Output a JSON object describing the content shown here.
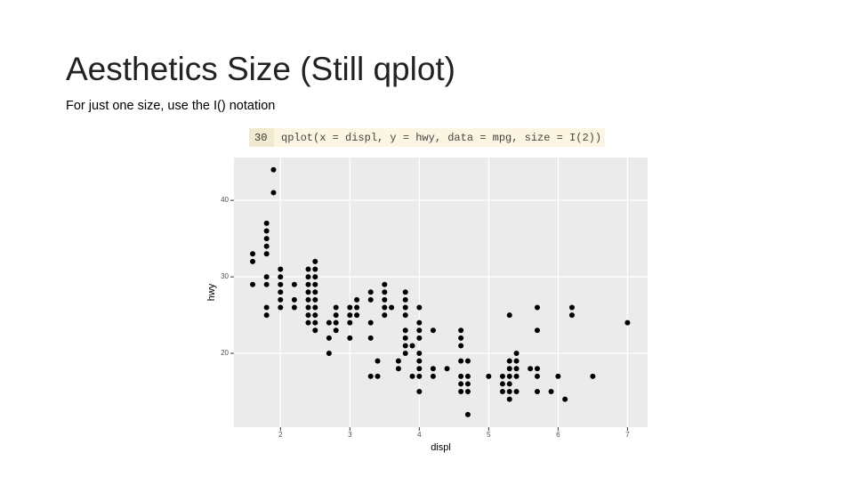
{
  "slide": {
    "title": "Aesthetics Size (Still qplot)",
    "subtitle": "For just one size, use the I() notation",
    "code_line_number": "30",
    "code": "qplot(x = displ, y = hwy, data = mpg, size = I(2))"
  },
  "chart_data": {
    "type": "scatter",
    "xlabel": "displ",
    "ylabel": "hwy",
    "color": "#000000",
    "grid": true,
    "xlim": [
      1.33,
      7.29
    ],
    "ylim": [
      10.35,
      45.6
    ],
    "xticks": [
      2,
      3,
      4,
      5,
      6,
      7
    ],
    "yticks": [
      20,
      30,
      40
    ],
    "x": [
      1.6,
      1.6,
      1.6,
      1.8,
      1.8,
      1.8,
      1.8,
      1.8,
      1.8,
      1.8,
      1.8,
      1.8,
      1.9,
      1.9,
      2.0,
      2.0,
      2.0,
      2.0,
      2.0,
      2.0,
      2.2,
      2.2,
      2.2,
      2.4,
      2.4,
      2.4,
      2.4,
      2.4,
      2.4,
      2.4,
      2.4,
      2.5,
      2.5,
      2.5,
      2.5,
      2.5,
      2.5,
      2.5,
      2.5,
      2.5,
      2.5,
      2.7,
      2.7,
      2.7,
      2.8,
      2.8,
      2.8,
      2.8,
      3.0,
      3.0,
      3.0,
      3.0,
      3.1,
      3.1,
      3.1,
      3.3,
      3.3,
      3.3,
      3.3,
      3.3,
      3.4,
      3.4,
      3.5,
      3.5,
      3.5,
      3.5,
      3.5,
      3.6,
      3.7,
      3.7,
      3.8,
      3.8,
      3.8,
      3.8,
      3.8,
      3.8,
      3.8,
      3.8,
      3.9,
      3.9,
      4.0,
      4.0,
      4.0,
      4.0,
      4.0,
      4.0,
      4.0,
      4.0,
      4.0,
      4.2,
      4.2,
      4.2,
      4.4,
      4.6,
      4.6,
      4.6,
      4.6,
      4.6,
      4.6,
      4.6,
      4.7,
      4.7,
      4.7,
      4.7,
      4.7,
      5.0,
      5.2,
      5.2,
      5.2,
      5.3,
      5.3,
      5.3,
      5.3,
      5.3,
      5.3,
      5.3,
      5.4,
      5.4,
      5.4,
      5.4,
      5.4,
      5.6,
      5.7,
      5.7,
      5.7,
      5.7,
      5.7,
      5.9,
      6.0,
      6.1,
      6.2,
      6.2,
      6.5,
      7.0
    ],
    "values": [
      33,
      32,
      29,
      37,
      36,
      35,
      34,
      33,
      30,
      29,
      26,
      25,
      44,
      41,
      31,
      30,
      29,
      28,
      27,
      26,
      29,
      27,
      26,
      31,
      30,
      29,
      28,
      27,
      26,
      25,
      24,
      32,
      31,
      30,
      29,
      28,
      27,
      26,
      25,
      24,
      23,
      24,
      22,
      20,
      26,
      25,
      24,
      23,
      26,
      25,
      24,
      22,
      27,
      26,
      25,
      28,
      27,
      24,
      22,
      17,
      19,
      17,
      29,
      28,
      27,
      26,
      25,
      26,
      19,
      18,
      28,
      27,
      26,
      25,
      23,
      22,
      21,
      20,
      21,
      17,
      26,
      24,
      23,
      22,
      20,
      19,
      18,
      17,
      15,
      23,
      18,
      17,
      18,
      23,
      22,
      21,
      19,
      17,
      16,
      15,
      19,
      17,
      16,
      15,
      12,
      17,
      17,
      16,
      15,
      25,
      19,
      18,
      17,
      16,
      15,
      14,
      20,
      19,
      18,
      17,
      15,
      18,
      26,
      23,
      18,
      17,
      15,
      15,
      17,
      14,
      26,
      25,
      17,
      24
    ]
  }
}
